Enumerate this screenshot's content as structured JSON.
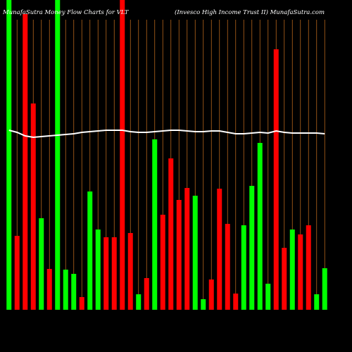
{
  "chart_data": {
    "type": "bar",
    "title": "MunafaSutra  Money Flow  Charts for VLT",
    "subtitle": "(Invesco  High Income  Trust II) MunafaSutra.com",
    "categories": [
      null,
      null,
      null,
      null,
      null,
      null,
      null,
      null,
      null,
      null,
      null,
      null,
      null,
      null,
      null,
      null,
      null,
      null,
      null,
      null,
      null,
      null,
      null,
      null,
      null,
      null,
      null,
      null,
      null,
      null,
      null,
      null,
      null,
      null,
      null,
      null,
      null,
      null,
      null,
      null
    ],
    "values": [
      440,
      105,
      420,
      293,
      130,
      58,
      440,
      57,
      51,
      18,
      168,
      114,
      103,
      103,
      440,
      109,
      22,
      45,
      242,
      135,
      215,
      156,
      173,
      162,
      15,
      43,
      172,
      122,
      23,
      120,
      176,
      237,
      37,
      370,
      88,
      114,
      107,
      120,
      22,
      59
    ],
    "colors": [
      "#00ff00",
      "#ff0000",
      "#ff0000",
      "#ff0000",
      "#00ff00",
      "#ff0000",
      "#00ff00",
      "#00ff00",
      "#00ff00",
      "#ff0000",
      "#00ff00",
      "#00ff00",
      "#ff0000",
      "#ff0000",
      "#ff0000",
      "#ff0000",
      "#00ff00",
      "#ff0000",
      "#00ff00",
      "#ff0000",
      "#ff0000",
      "#ff0000",
      "#ff0000",
      "#00ff00",
      "#00ff00",
      "#ff0000",
      "#ff0000",
      "#ff0000",
      "#ff0000",
      "#00ff00",
      "#00ff00",
      "#00ff00",
      "#00ff00",
      "#ff0000",
      "#ff0000",
      "#00ff00",
      "#ff0000",
      "#ff0000",
      "#00ff00",
      "#00ff00"
    ],
    "line": {
      "color": "#ffffff",
      "values": [
        255,
        252,
        247,
        245,
        246,
        247,
        248,
        249,
        250,
        252,
        253,
        254,
        255,
        255,
        255,
        253,
        252,
        252,
        253,
        254,
        255,
        255,
        254,
        253,
        253,
        254,
        254,
        252,
        250,
        250,
        251,
        252,
        251,
        254,
        252,
        251,
        251,
        251,
        251,
        250
      ]
    },
    "ylim": [
      0,
      440
    ]
  }
}
